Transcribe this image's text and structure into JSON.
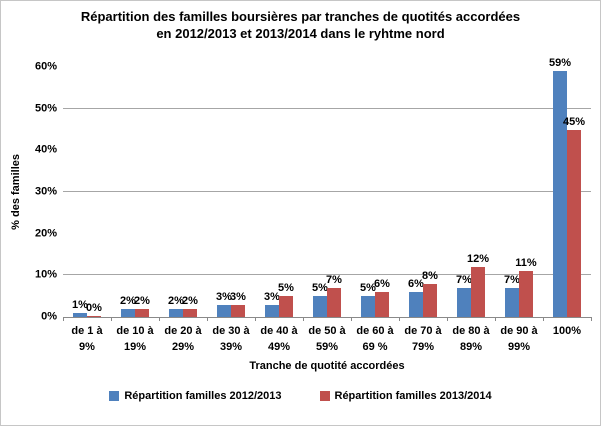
{
  "title": {
    "line1": "Répartition des familles boursières par tranches de quotités accordées",
    "line2": "en 2012/2013 et 2013/2014 dans le ryhtme nord"
  },
  "chart_data": {
    "type": "bar",
    "title": "Répartition des familles boursières par tranches de quotités accordées en 2012/2013 et 2013/2014 dans le ryhtme nord",
    "categories": [
      "de 1 à 9%",
      "de 10 à 19%",
      "de 20 à 29%",
      "de 30 à 39%",
      "de 40 à 49%",
      "de 50 à 59%",
      "de 60 à 69 %",
      "de 70 à 79%",
      "de 80 à 89%",
      "de 90 à 99%",
      "100%"
    ],
    "category_lines": [
      [
        "de 1 à",
        "9%"
      ],
      [
        "de 10 à",
        "19%"
      ],
      [
        "de 20 à",
        "29%"
      ],
      [
        "de 30 à",
        "39%"
      ],
      [
        "de 40 à",
        "49%"
      ],
      [
        "de 50 à",
        "59%"
      ],
      [
        "de 60 à",
        "69 %"
      ],
      [
        "de 70 à",
        "79%"
      ],
      [
        "de 80 à",
        "89%"
      ],
      [
        "de 90 à",
        "99%"
      ],
      [
        "100%"
      ]
    ],
    "series": [
      {
        "name": "Répartition familles 2012/2013",
        "color": "#4F81BD",
        "values": [
          1,
          2,
          2,
          3,
          3,
          5,
          5,
          6,
          7,
          7,
          59
        ],
        "labels": [
          "1%",
          "2%",
          "2%",
          "3%",
          "3%",
          "5%",
          "5%",
          "6%",
          "7%",
          "7%",
          "59%"
        ]
      },
      {
        "name": "Répartition familles 2013/2014",
        "color": "#C0504D",
        "values": [
          0,
          2,
          2,
          3,
          5,
          7,
          6,
          8,
          12,
          11,
          45
        ],
        "labels": [
          "0%",
          "2%",
          "2%",
          "3%",
          "5%",
          "7%",
          "6%",
          "8%",
          "12%",
          "11%",
          "45%"
        ]
      }
    ],
    "xlabel": "Tranche de quotité accordées",
    "ylabel": "% des familles",
    "ylim": [
      0,
      60
    ],
    "ytick_values": [
      0,
      10,
      20,
      30,
      40,
      50,
      60
    ],
    "yticks": [
      "0%",
      "10%",
      "20%",
      "30%",
      "40%",
      "50%",
      "60%"
    ],
    "gridlines_at": [
      10,
      30,
      50
    ],
    "legend_position": "bottom",
    "colors": {
      "grid": "#A6A6A6",
      "axis": "#898989",
      "text": "#000000",
      "frame_border": "#C6C6C6",
      "background": "#FFFFFF"
    }
  }
}
